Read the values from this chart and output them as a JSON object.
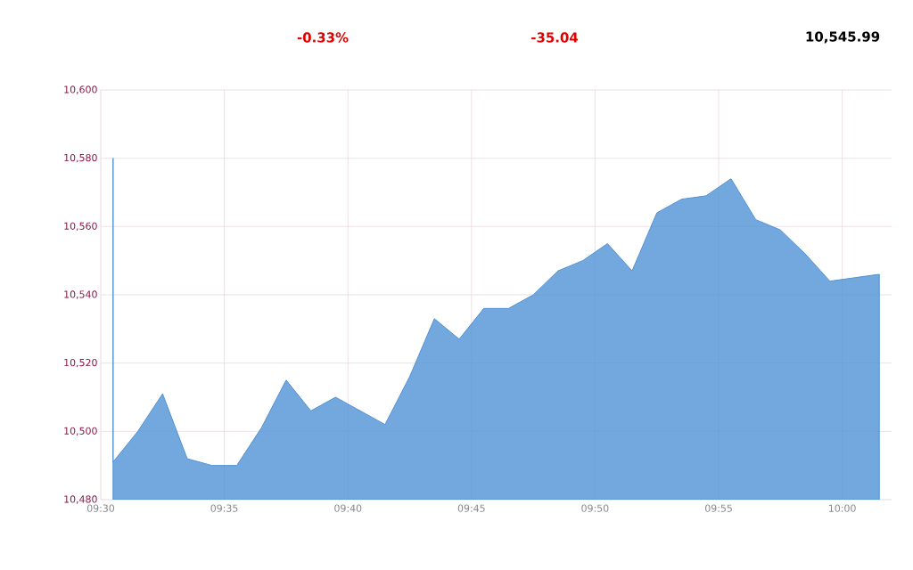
{
  "chart_data": {
    "type": "area",
    "annotations": [
      "-0.33%",
      "-35.04",
      "10,545.99"
    ],
    "x": [
      9.5083,
      9.5083,
      9.525,
      9.5417,
      9.5583,
      9.575,
      9.5917,
      9.6083,
      9.625,
      9.6417,
      9.6583,
      9.675,
      9.6917,
      9.7083,
      9.725,
      9.7417,
      9.7583,
      9.775,
      9.7917,
      9.8083,
      9.825,
      9.8417,
      9.8583,
      9.875,
      9.8917,
      9.9083,
      9.925,
      9.9417,
      9.9583,
      9.975,
      9.9917,
      10.0083,
      10.025
    ],
    "series": [
      {
        "color": "#4f92d4",
        "values": [
          10580,
          10491,
          10500,
          10511,
          10492,
          10490,
          10490,
          10501,
          10515,
          10506,
          10510,
          10506,
          10502,
          10516,
          10533,
          10527,
          10536,
          10536,
          10540,
          10547,
          10550,
          10555,
          10547,
          10564,
          10568,
          10569,
          10574,
          10562,
          10559,
          10552,
          10544,
          10545,
          10546
        ]
      }
    ],
    "xlim": [
      9.5,
      10.0333
    ],
    "xticks": [
      {
        "value": 9.5,
        "label": "09:30"
      },
      {
        "value": 9.5833,
        "label": "09:35"
      },
      {
        "value": 9.6667,
        "label": "09:40"
      },
      {
        "value": 9.75,
        "label": "09:45"
      },
      {
        "value": 9.8333,
        "label": "09:50"
      },
      {
        "value": 9.9167,
        "label": "09:55"
      },
      {
        "value": 10.0,
        "label": "10:00"
      }
    ],
    "ylim": [
      10480,
      10600
    ],
    "yticks": [
      {
        "value": 10480,
        "label": "10,480"
      },
      {
        "value": 10500,
        "label": "10,500"
      },
      {
        "value": 10520,
        "label": "10,520"
      },
      {
        "value": 10540,
        "label": "10,540"
      },
      {
        "value": 10560,
        "label": "10,560"
      },
      {
        "value": 10580,
        "label": "10,580"
      },
      {
        "value": 10600,
        "label": "10,600"
      }
    ],
    "grid": true,
    "marker": "none"
  }
}
